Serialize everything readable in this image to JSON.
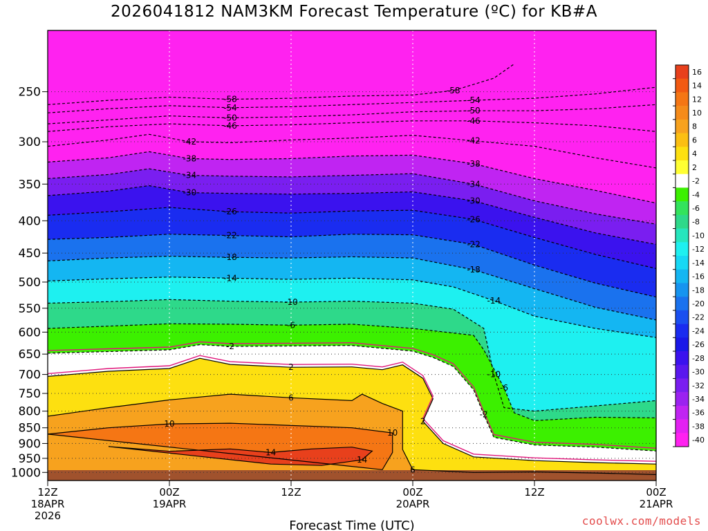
{
  "chart_data": {
    "type": "heatmap",
    "title": "2026041812 NAM3KM Forecast Temperature (ºC) for KB#A",
    "xlabel": "Forecast Time (UTC)",
    "ylabel": "",
    "y_axis": {
      "scale": "log-pressure",
      "unit": "hPa",
      "inverted": true,
      "range": [
        1030,
        200
      ],
      "ticks": [
        250,
        300,
        350,
        400,
        450,
        500,
        550,
        600,
        650,
        700,
        750,
        800,
        850,
        900,
        950,
        1000
      ]
    },
    "x_axis": {
      "range_hours": [
        0,
        60
      ],
      "ticks": [
        {
          "hour": 0,
          "lines": [
            "12Z",
            "18APR",
            "2026"
          ]
        },
        {
          "hour": 12,
          "lines": [
            "00Z",
            "19APR"
          ]
        },
        {
          "hour": 24,
          "lines": [
            "12Z"
          ]
        },
        {
          "hour": 36,
          "lines": [
            "00Z",
            "20APR"
          ]
        },
        {
          "hour": 48,
          "lines": [
            "12Z"
          ]
        },
        {
          "hour": 60,
          "lines": [
            "00Z",
            "21APR"
          ]
        }
      ]
    },
    "grid": true,
    "colorbar": {
      "position": "right",
      "labels": [
        "16",
        "14",
        "12",
        "10",
        "8",
        "6",
        "4",
        "2",
        "-2",
        "-4",
        "-6",
        "-8",
        "-10",
        "-12",
        "-14",
        "-16",
        "-18",
        "-20",
        "-22",
        "-24",
        "-26",
        "-28",
        "-30",
        "-32",
        "-34",
        "-36",
        "-38",
        "-40"
      ],
      "colors": [
        "#e8401c",
        "#f25a12",
        "#f57614",
        "#f58b1a",
        "#f7a21e",
        "#fbbf12",
        "#fde010",
        "#ffff33",
        "#ffffff",
        "#3cf000",
        "#33e35c",
        "#2ed98a",
        "#26e6bd",
        "#1ef0f0",
        "#17d8f5",
        "#14b6f2",
        "#1694f0",
        "#1a72ee",
        "#1a4ff0",
        "#1a2cf0",
        "#1a18e8",
        "#3b12ee",
        "#5a18ee",
        "#7a1ef0",
        "#9b22f0",
        "#c024f2",
        "#e322f2",
        "#ff22f0"
      ]
    },
    "series": [
      {
        "temp_c": -58,
        "points": [
          [
            0,
            262
          ],
          [
            6,
            258
          ],
          [
            12,
            255
          ],
          [
            18,
            257
          ],
          [
            24,
            256
          ],
          [
            30,
            254
          ],
          [
            36,
            253
          ],
          [
            40,
            249
          ],
          [
            44,
            238
          ],
          [
            46,
            226
          ]
        ]
      },
      {
        "temp_c": -54,
        "points": [
          [
            0,
            270
          ],
          [
            6,
            266
          ],
          [
            12,
            263
          ],
          [
            18,
            265
          ],
          [
            24,
            264
          ],
          [
            30,
            262
          ],
          [
            36,
            260
          ],
          [
            42,
            258
          ],
          [
            48,
            256
          ],
          [
            54,
            252
          ],
          [
            60,
            246
          ]
        ]
      },
      {
        "temp_c": -50,
        "points": [
          [
            0,
            281
          ],
          [
            6,
            277
          ],
          [
            12,
            273
          ],
          [
            18,
            275
          ],
          [
            24,
            274
          ],
          [
            30,
            272
          ],
          [
            36,
            269
          ],
          [
            42,
            268
          ],
          [
            48,
            268
          ],
          [
            54,
            266
          ],
          [
            60,
            262
          ]
        ]
      },
      {
        "temp_c": -46,
        "points": [
          [
            0,
            289
          ],
          [
            6,
            284
          ],
          [
            12,
            281
          ],
          [
            18,
            283
          ],
          [
            24,
            282
          ],
          [
            30,
            280
          ],
          [
            36,
            278
          ],
          [
            42,
            278
          ],
          [
            48,
            280
          ],
          [
            54,
            283
          ],
          [
            60,
            289
          ]
        ]
      },
      {
        "temp_c": -42,
        "points": [
          [
            0,
            305
          ],
          [
            6,
            298
          ],
          [
            10,
            292
          ],
          [
            14,
            300
          ],
          [
            18,
            301
          ],
          [
            24,
            298
          ],
          [
            30,
            296
          ],
          [
            36,
            293
          ],
          [
            42,
            299
          ],
          [
            48,
            305
          ],
          [
            54,
            318
          ],
          [
            60,
            330
          ]
        ]
      },
      {
        "temp_c": -38,
        "points": [
          [
            0,
            323
          ],
          [
            6,
            318
          ],
          [
            10,
            311
          ],
          [
            14,
            319
          ],
          [
            18,
            320
          ],
          [
            24,
            319
          ],
          [
            30,
            316
          ],
          [
            36,
            315
          ],
          [
            42,
            325
          ],
          [
            48,
            343
          ],
          [
            54,
            358
          ],
          [
            60,
            375
          ]
        ]
      },
      {
        "temp_c": -34,
        "points": [
          [
            0,
            343
          ],
          [
            6,
            338
          ],
          [
            10,
            331
          ],
          [
            14,
            339
          ],
          [
            18,
            340
          ],
          [
            24,
            341
          ],
          [
            30,
            339
          ],
          [
            36,
            337
          ],
          [
            42,
            350
          ],
          [
            48,
            372
          ],
          [
            54,
            390
          ],
          [
            60,
            405
          ]
        ]
      },
      {
        "temp_c": -30,
        "points": [
          [
            0,
            365
          ],
          [
            6,
            359
          ],
          [
            10,
            352
          ],
          [
            14,
            361
          ],
          [
            18,
            362
          ],
          [
            24,
            363
          ],
          [
            30,
            362
          ],
          [
            36,
            360
          ],
          [
            42,
            372
          ],
          [
            48,
            395
          ],
          [
            54,
            418
          ],
          [
            60,
            436
          ]
        ]
      },
      {
        "temp_c": -26,
        "points": [
          [
            0,
            392
          ],
          [
            6,
            387
          ],
          [
            12,
            381
          ],
          [
            18,
            387
          ],
          [
            24,
            389
          ],
          [
            30,
            386
          ],
          [
            36,
            385
          ],
          [
            42,
            398
          ],
          [
            48,
            425
          ],
          [
            54,
            452
          ],
          [
            60,
            476
          ]
        ]
      },
      {
        "temp_c": -22,
        "points": [
          [
            0,
            428
          ],
          [
            6,
            425
          ],
          [
            12,
            420
          ],
          [
            18,
            422
          ],
          [
            24,
            424
          ],
          [
            30,
            420
          ],
          [
            36,
            421
          ],
          [
            42,
            436
          ],
          [
            48,
            470
          ],
          [
            54,
            502
          ],
          [
            60,
            528
          ]
        ]
      },
      {
        "temp_c": -18,
        "points": [
          [
            0,
            463
          ],
          [
            6,
            458
          ],
          [
            12,
            455
          ],
          [
            18,
            457
          ],
          [
            24,
            458
          ],
          [
            30,
            456
          ],
          [
            36,
            458
          ],
          [
            42,
            478
          ],
          [
            48,
            512
          ],
          [
            54,
            548
          ],
          [
            60,
            574
          ]
        ]
      },
      {
        "temp_c": -14,
        "points": [
          [
            0,
            498
          ],
          [
            6,
            494
          ],
          [
            12,
            491
          ],
          [
            18,
            493
          ],
          [
            24,
            495
          ],
          [
            30,
            493
          ],
          [
            36,
            496
          ],
          [
            40,
            509
          ],
          [
            44,
            535
          ],
          [
            48,
            566
          ],
          [
            54,
            592
          ],
          [
            60,
            612
          ]
        ]
      },
      {
        "temp_c": -10,
        "points": [
          [
            0,
            540
          ],
          [
            6,
            537
          ],
          [
            12,
            533
          ],
          [
            18,
            536
          ],
          [
            24,
            538
          ],
          [
            30,
            536
          ],
          [
            36,
            540
          ],
          [
            40,
            552
          ],
          [
            43,
            592
          ],
          [
            44,
            700
          ],
          [
            45,
            790
          ],
          [
            48,
            800
          ],
          [
            54,
            785
          ],
          [
            60,
            770
          ]
        ]
      },
      {
        "temp_c": -6,
        "points": [
          [
            0,
            592
          ],
          [
            6,
            587
          ],
          [
            12,
            582
          ],
          [
            18,
            583
          ],
          [
            24,
            585
          ],
          [
            30,
            583
          ],
          [
            36,
            592
          ],
          [
            40,
            602
          ],
          [
            42,
            607
          ],
          [
            43,
            640
          ],
          [
            45,
            735
          ],
          [
            46,
            805
          ],
          [
            48,
            828
          ],
          [
            54,
            818
          ],
          [
            60,
            820
          ]
        ]
      },
      {
        "temp_c": -2,
        "points": [
          [
            0,
            648
          ],
          [
            6,
            644
          ],
          [
            12,
            640
          ],
          [
            15,
            628
          ],
          [
            18,
            632
          ],
          [
            24,
            631
          ],
          [
            30,
            630
          ],
          [
            36,
            643
          ],
          [
            38,
            658
          ],
          [
            40,
            680
          ],
          [
            42,
            740
          ],
          [
            43,
            810
          ],
          [
            44,
            880
          ],
          [
            48,
            905
          ],
          [
            54,
            912
          ],
          [
            60,
            925
          ]
        ]
      },
      {
        "temp_c": 2,
        "points": [
          [
            0,
            705
          ],
          [
            6,
            692
          ],
          [
            12,
            685
          ],
          [
            15,
            660
          ],
          [
            18,
            675
          ],
          [
            24,
            682
          ],
          [
            30,
            681
          ],
          [
            33,
            688
          ],
          [
            35,
            676
          ],
          [
            37,
            710
          ],
          [
            38,
            765
          ],
          [
            37,
            830
          ],
          [
            39,
            900
          ],
          [
            42,
            945
          ],
          [
            48,
            958
          ],
          [
            54,
            965
          ],
          [
            60,
            970
          ]
        ]
      },
      {
        "temp_c": 6,
        "points": [
          [
            0,
            815
          ],
          [
            6,
            790
          ],
          [
            12,
            768
          ],
          [
            18,
            752
          ],
          [
            24,
            762
          ],
          [
            30,
            770
          ],
          [
            31,
            752
          ],
          [
            33,
            778
          ],
          [
            35,
            800
          ],
          [
            35,
            850
          ],
          [
            35,
            920
          ],
          [
            36,
            990
          ],
          [
            42,
            1000
          ],
          [
            48,
            998
          ],
          [
            54,
            1002
          ],
          [
            60,
            1008
          ]
        ]
      },
      {
        "temp_c": 10,
        "points": [
          [
            0,
            870
          ],
          [
            6,
            850
          ],
          [
            12,
            838
          ],
          [
            18,
            836
          ],
          [
            24,
            843
          ],
          [
            30,
            850
          ],
          [
            34,
            866
          ],
          [
            34,
            930
          ],
          [
            33,
            990
          ]
        ]
      },
      {
        "temp_c": 14,
        "points": [
          [
            6,
            910
          ],
          [
            12,
            926
          ],
          [
            18,
            918
          ],
          [
            22,
            930
          ],
          [
            26,
            918
          ],
          [
            30,
            912
          ],
          [
            32,
            925
          ],
          [
            31,
            955
          ],
          [
            27,
            975
          ],
          [
            22,
            970
          ]
        ]
      }
    ]
  },
  "credit": "coolwx.com/models"
}
